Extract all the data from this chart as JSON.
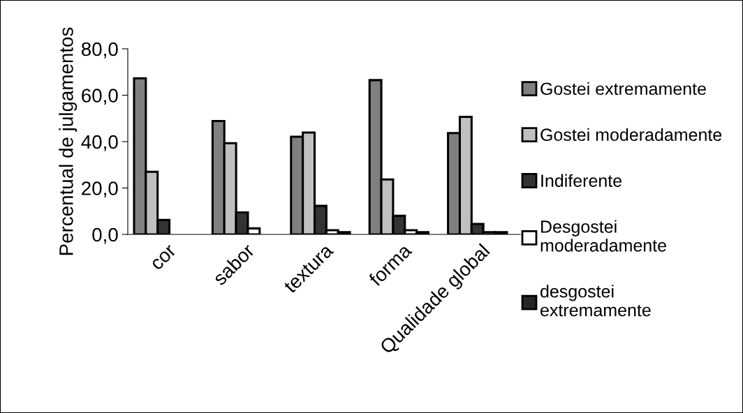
{
  "chart_data": {
    "type": "bar",
    "ylabel": "Percentual de julgamentos",
    "categories": [
      "cor",
      "sabor",
      "textura",
      "forma",
      "Qualidade global"
    ],
    "series": [
      {
        "name": "Gostei extremamente",
        "color": "#808080",
        "values": [
          67.3,
          48.9,
          42.1,
          66.5,
          43.7
        ]
      },
      {
        "name": "Gostei moderadamente",
        "color": "#c0c0c0",
        "values": [
          27.0,
          39.3,
          43.9,
          23.7,
          50.7
        ]
      },
      {
        "name": "Indiferente",
        "color": "#333333",
        "values": [
          6.2,
          9.5,
          12.3,
          8.0,
          4.5
        ]
      },
      {
        "name": "Desgostei\nmoderadamente",
        "color": "#ffffff",
        "values": [
          null,
          2.6,
          1.8,
          1.8,
          1.0
        ]
      },
      {
        "name": "desgostei\nextremamente",
        "color": "#262626",
        "values": [
          null,
          null,
          1.0,
          1.0,
          1.0
        ]
      }
    ],
    "ylim": [
      0,
      80
    ],
    "yticks": [
      {
        "value": 0,
        "label": "0,0"
      },
      {
        "value": 20,
        "label": "20,0"
      },
      {
        "value": 40,
        "label": "40,0"
      },
      {
        "value": 60,
        "label": "60,0"
      },
      {
        "value": 80,
        "label": "80,0"
      }
    ],
    "grid": false,
    "legend": "right"
  }
}
